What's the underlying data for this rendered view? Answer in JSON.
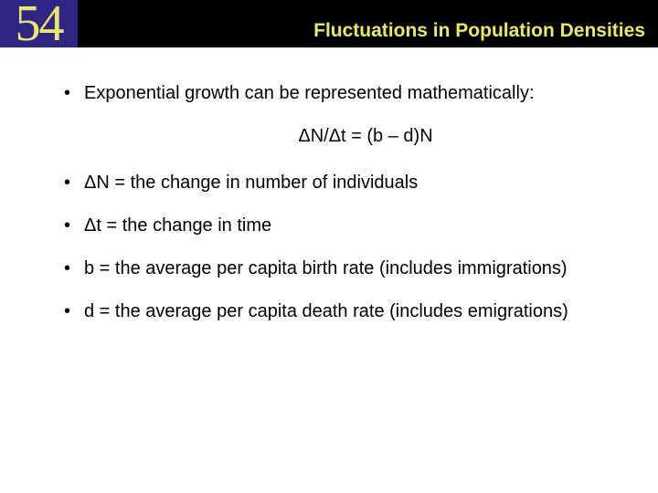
{
  "header": {
    "chapter_number": "54",
    "title": "Fluctuations in Population Densities",
    "chapter_bg_color": "#2e2585",
    "chapter_text_color": "#e8e86a",
    "header_bg_color": "#000000"
  },
  "content": {
    "bullets": [
      "Exponential growth can be represented mathematically:",
      "ΔN = the change in number of individuals",
      "Δt = the change in time",
      " b = the average per capita birth rate (includes immigrations)",
      " d = the average per capita death rate (includes emigrations)"
    ],
    "equation": "ΔN/Δt = (b – d)N",
    "font_size": 20,
    "text_color": "#000000",
    "background_color": "#ffffff"
  }
}
